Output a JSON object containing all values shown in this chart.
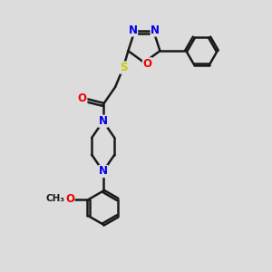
{
  "bg_color": "#dcdcdc",
  "bond_color": "#1a1a1a",
  "bond_width": 1.8,
  "atom_colors": {
    "N": "#0000ee",
    "O": "#ee0000",
    "S": "#cccc00",
    "C": "#1a1a1a"
  },
  "font_size_atom": 8.5,
  "font_size_small": 7.5,
  "dbo": 0.055
}
